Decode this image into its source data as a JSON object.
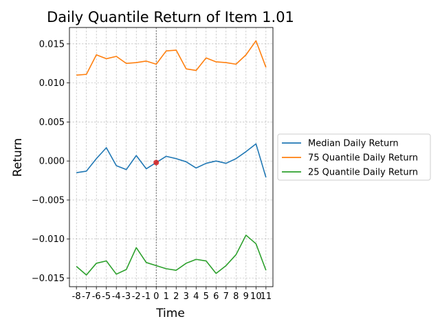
{
  "chart_data": {
    "type": "line",
    "title": "Daily Quantile Return of Item 1.01",
    "xlabel": "Time",
    "ylabel": "Return",
    "x": [
      -8,
      -7,
      -6,
      -5,
      -4,
      -3,
      -2,
      -1,
      0,
      1,
      2,
      3,
      4,
      5,
      6,
      7,
      8,
      9,
      10,
      11
    ],
    "xticks": [
      "-8",
      "-7",
      "-6",
      "-5",
      "-4",
      "-3",
      "-2",
      "-1",
      "0",
      "1",
      "2",
      "3",
      "4",
      "5",
      "6",
      "7",
      "8",
      "9",
      "10",
      "11"
    ],
    "yticks": [
      "0.015",
      "0.010",
      "0.005",
      "0.000",
      "−0.005",
      "−0.010",
      "−0.015"
    ],
    "ytick_values": [
      0.015,
      0.01,
      0.005,
      0.0,
      -0.005,
      -0.01,
      -0.015
    ],
    "xlim": [
      -8.7,
      11.7
    ],
    "ylim": [
      -0.0161,
      0.0171
    ],
    "grid": true,
    "legend_position": "right-outside",
    "event_line_x": 0,
    "highlight_point": {
      "x": 0,
      "y": -0.0002,
      "color": "#d62728"
    },
    "series": [
      {
        "name": "Median Daily Return",
        "color": "#1f77b4",
        "values": [
          -0.0015,
          -0.0013,
          0.0003,
          0.0017,
          -0.0006,
          -0.0011,
          0.0007,
          -0.001,
          -0.0002,
          0.0006,
          0.0003,
          -0.0001,
          -0.0009,
          -0.0003,
          0.0,
          -0.0003,
          0.0003,
          0.0012,
          0.0022,
          -0.0021
        ]
      },
      {
        "name": "75 Quantile Daily Return",
        "color": "#ff7f0e",
        "values": [
          0.011,
          0.0111,
          0.0136,
          0.0131,
          0.0134,
          0.0125,
          0.0126,
          0.0128,
          0.0124,
          0.0141,
          0.0142,
          0.0118,
          0.0116,
          0.0132,
          0.0127,
          0.0126,
          0.0124,
          0.0136,
          0.0154,
          0.012
        ]
      },
      {
        "name": "25 Quantile Daily Return",
        "color": "#2ca02c",
        "values": [
          -0.0135,
          -0.0146,
          -0.0131,
          -0.0128,
          -0.0145,
          -0.0139,
          -0.0111,
          -0.013,
          -0.0134,
          -0.0138,
          -0.014,
          -0.0131,
          -0.0126,
          -0.0128,
          -0.0144,
          -0.0134,
          -0.012,
          -0.0095,
          -0.0106,
          -0.014
        ]
      }
    ]
  }
}
